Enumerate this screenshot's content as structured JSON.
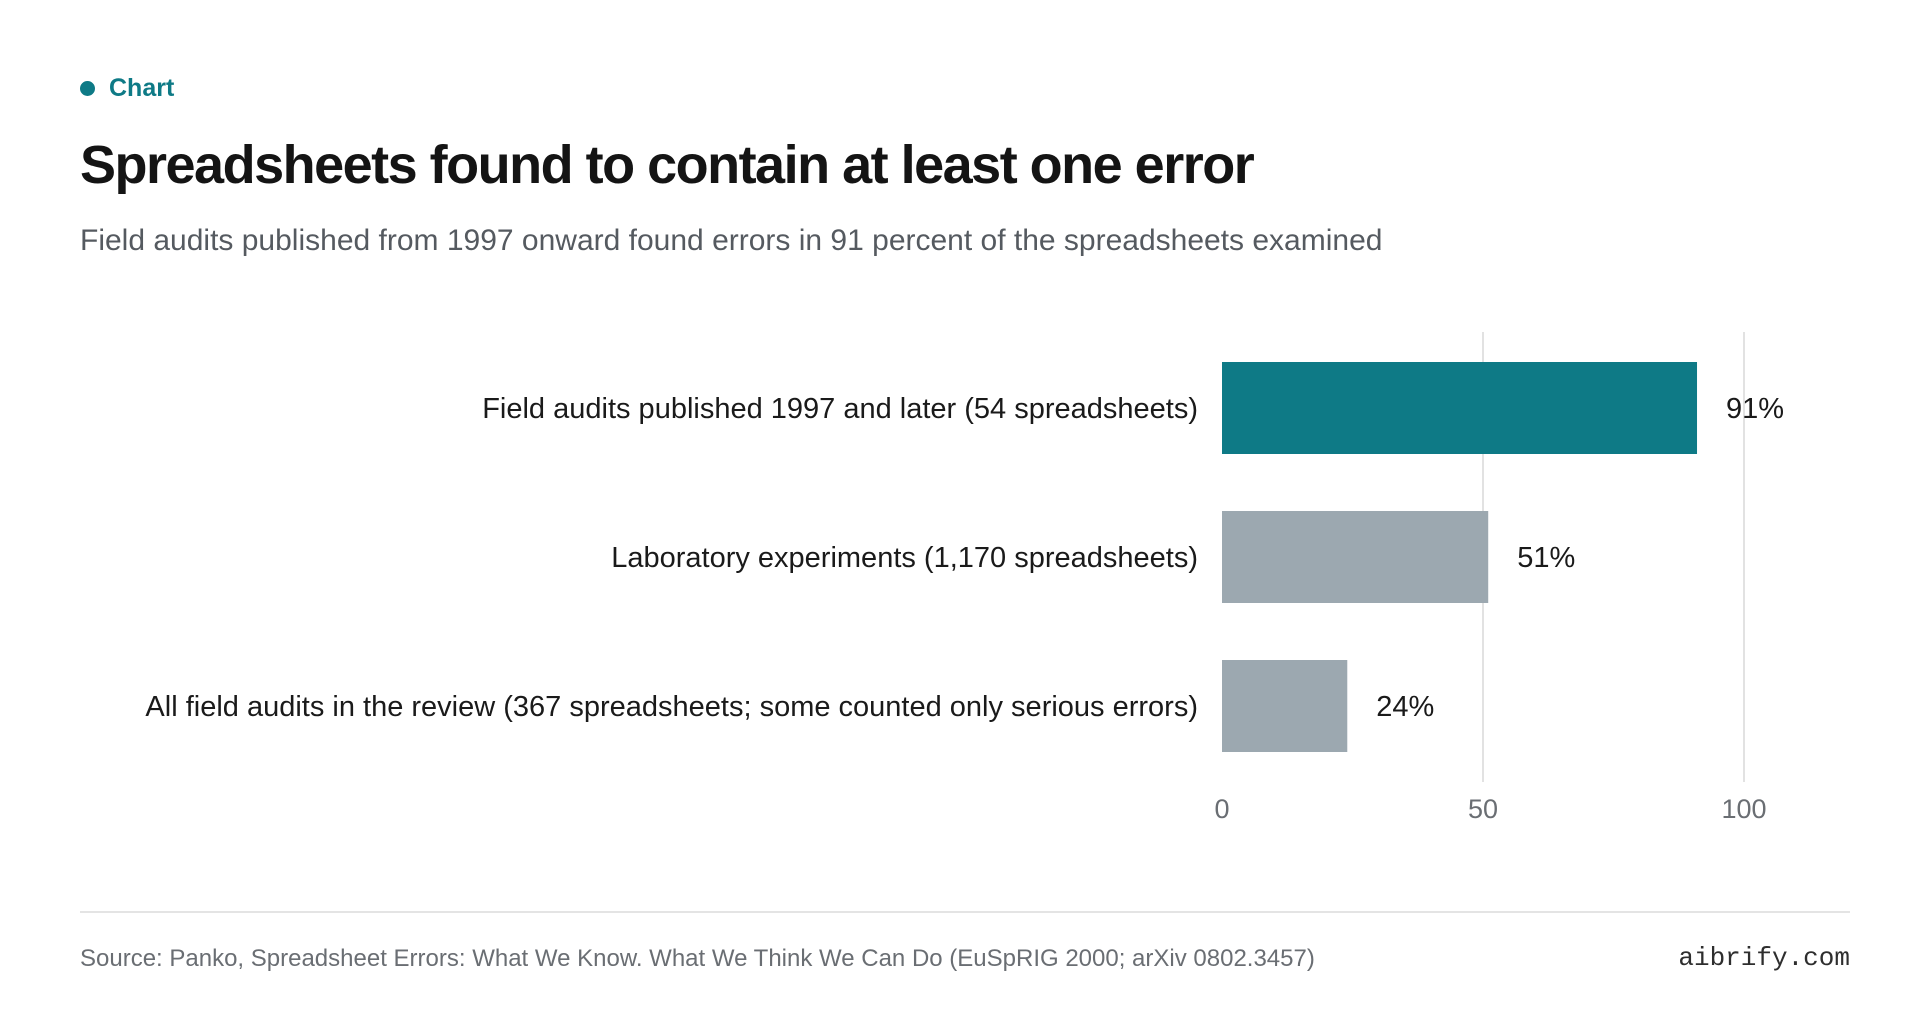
{
  "eyebrow": "Chart",
  "chart_data": {
    "type": "bar",
    "orientation": "horizontal",
    "title": "Spreadsheets found to contain at least one error",
    "subtitle": "Field audits published from 1997 onward found errors in 91 percent of the spreadsheets examined",
    "categories": [
      "Field audits published 1997 and later (54 spreadsheets)",
      "Laboratory experiments (1,170 spreadsheets)",
      "All field audits in the review (367 spreadsheets; some counted only serious errors)"
    ],
    "values": [
      91,
      51,
      24
    ],
    "value_labels": [
      "91%",
      "51%",
      "24%"
    ],
    "colors": [
      "#0e7a86",
      "#9ca8b0",
      "#9ca8b0"
    ],
    "xlim": [
      0,
      100
    ],
    "xticks": [
      0,
      50,
      100
    ],
    "xtick_labels": [
      "0",
      "50",
      "100"
    ],
    "grid": true,
    "legend": "none"
  },
  "footer": {
    "source": "Source: Panko, Spreadsheet Errors: What We Know. What We Think We Can Do (EuSpRIG 2000; arXiv 0802.3457)",
    "brand": "aibrify.com"
  }
}
